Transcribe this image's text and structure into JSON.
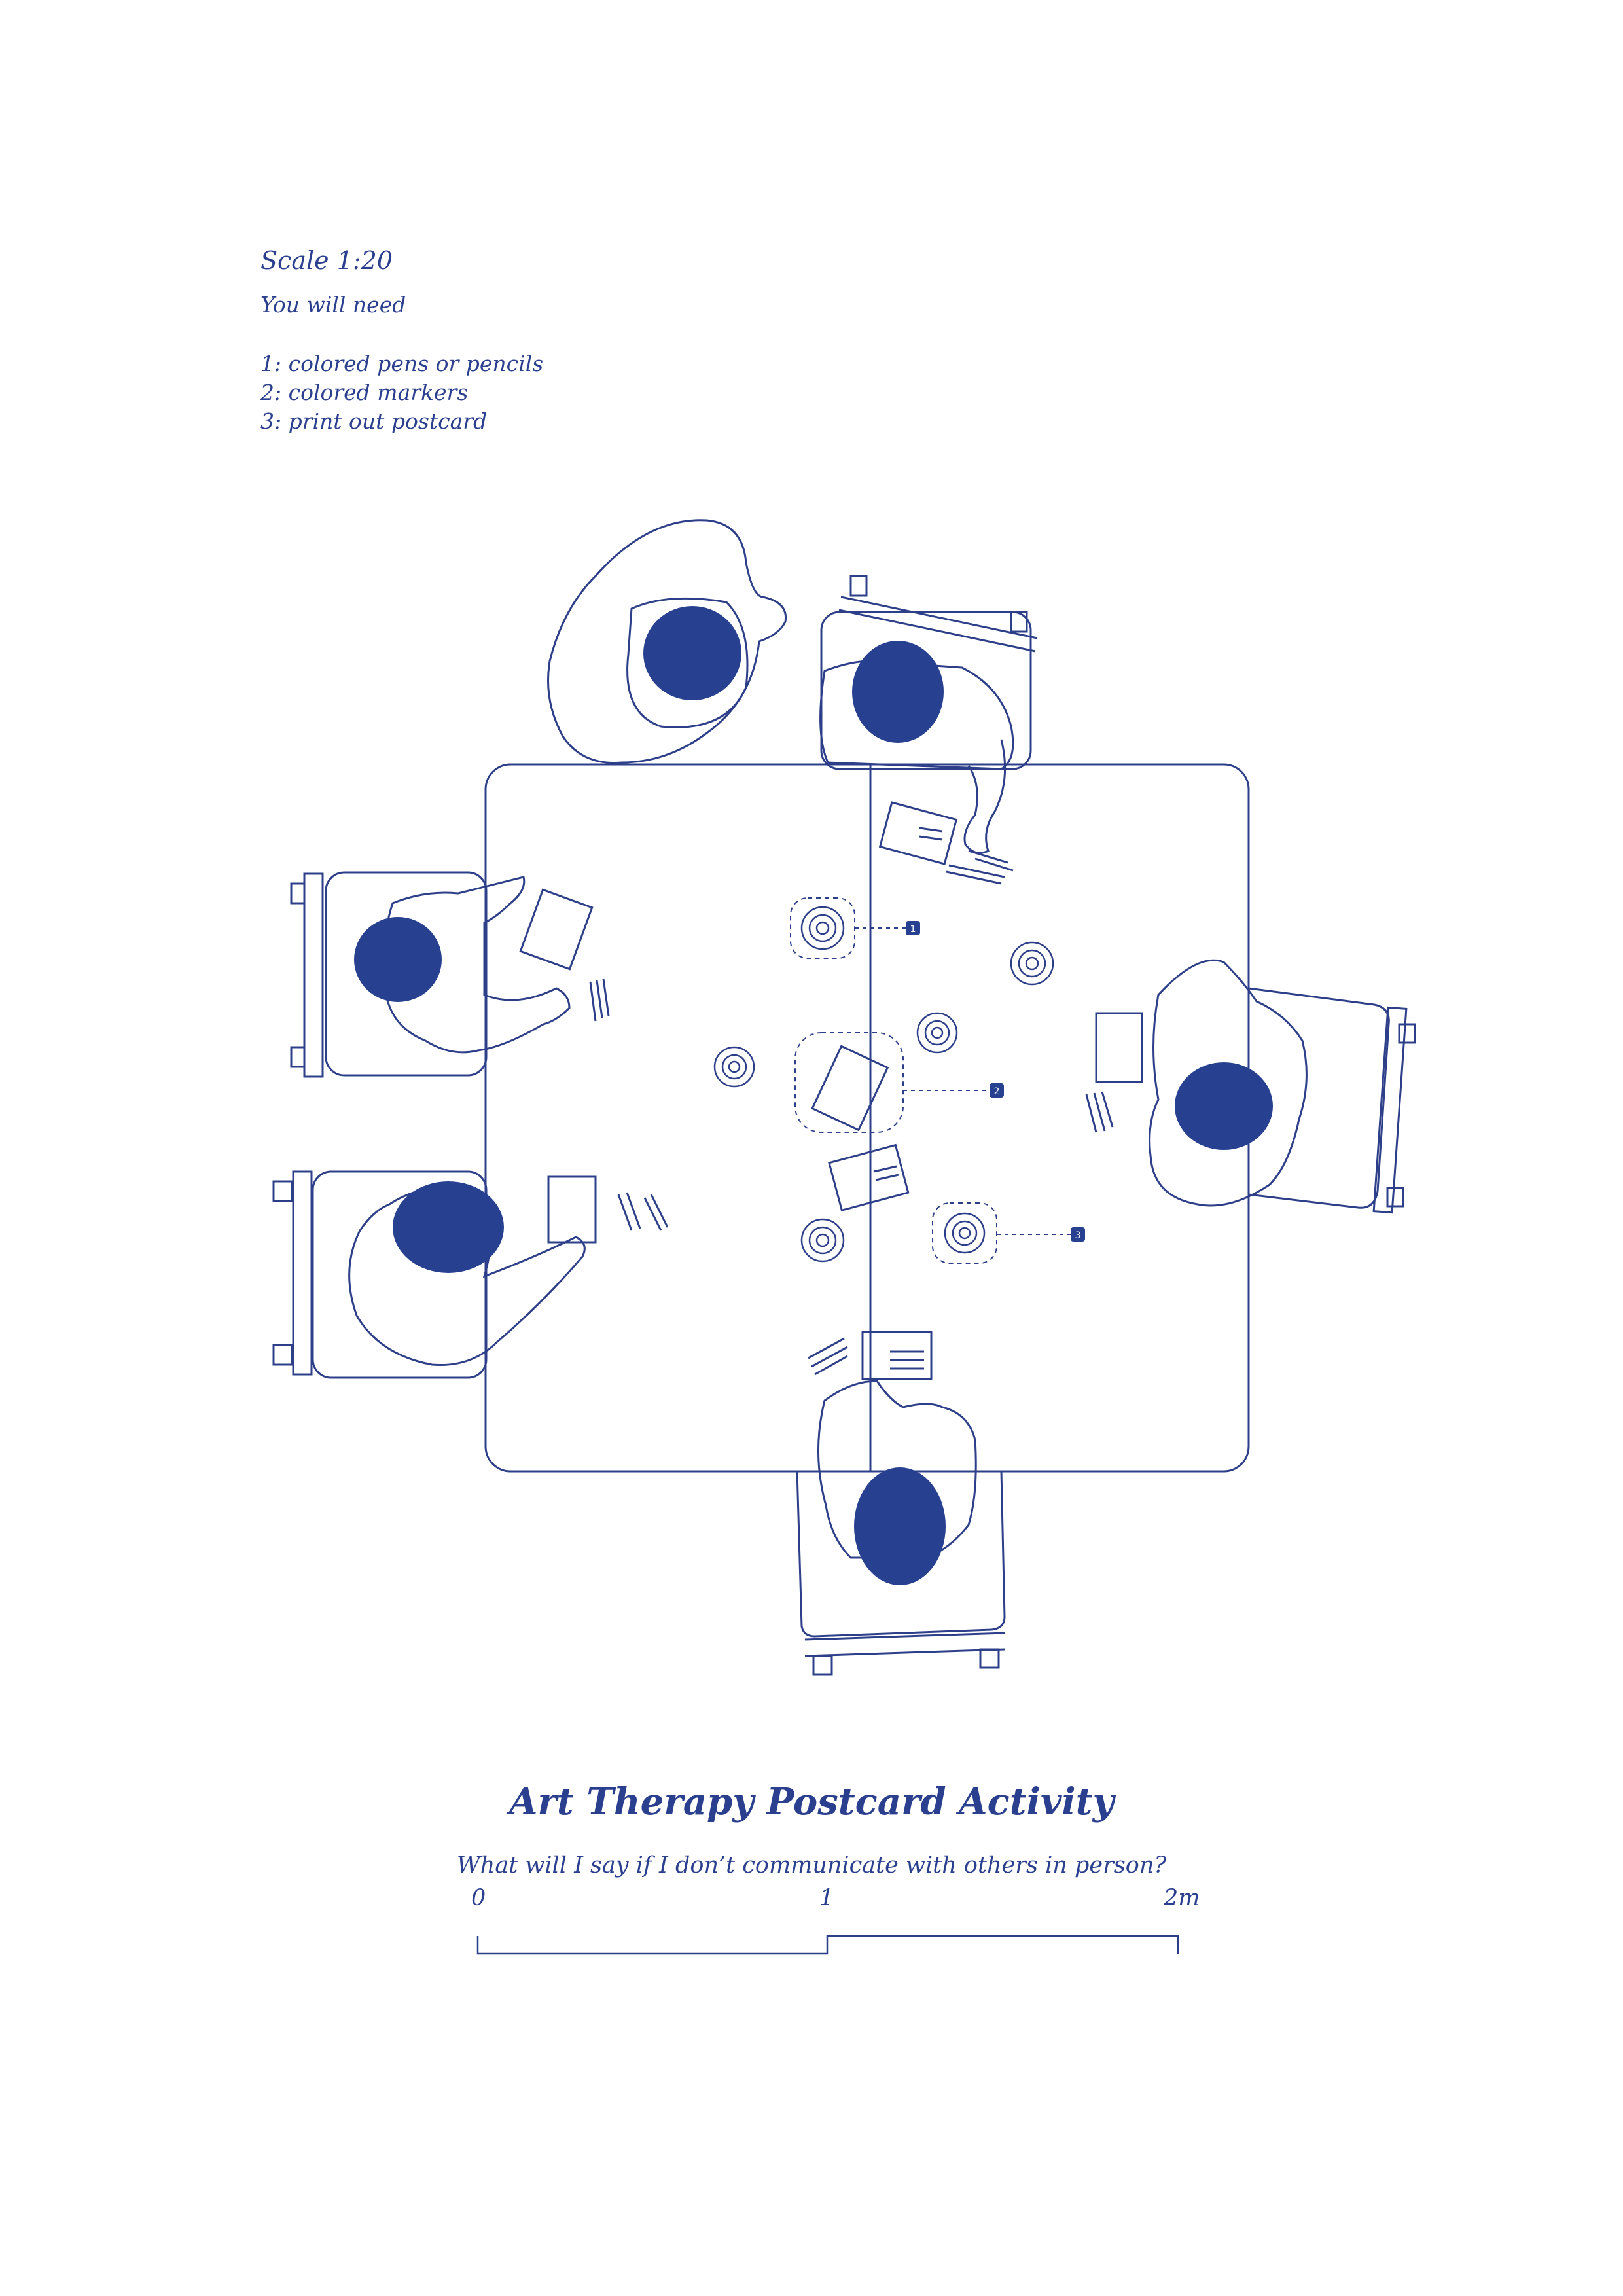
{
  "header": {
    "scale": "Scale 1:20",
    "you_will_need": "You will need",
    "items": [
      "1: colored pens or pencils",
      "2: colored markers",
      "3: print out postcard"
    ]
  },
  "title": "Art Therapy Postcard Activity",
  "subtitle": "What will I say if I don’t communicate with others in person?",
  "scale_bar": {
    "labels": [
      "0",
      "1",
      "2m"
    ]
  },
  "callouts": [
    "1",
    "2",
    "3"
  ],
  "colors": {
    "ink": "#2b3f8f",
    "head": "#27408f",
    "line": "#2e3f8a"
  }
}
